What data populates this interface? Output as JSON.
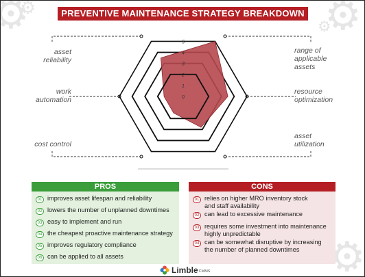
{
  "title": "PREVENTIVE MAINTENANCE STRATEGY BREAKDOWN",
  "chart_data": {
    "type": "radar",
    "axes": [
      "range of applicable assets",
      "resource optimization",
      "asset utilization",
      "cost control",
      "work automation",
      "asset reliability"
    ],
    "axis_labels": {
      "asset_reliability": [
        "asset",
        "reliability"
      ],
      "range_of_applicable_assets": [
        "range of",
        "applicable",
        "assets"
      ],
      "work_automation": [
        "work",
        "automation"
      ],
      "resource_optimization": [
        "resource",
        "optimization"
      ],
      "cost_control": [
        "cost control"
      ],
      "asset_utilization": [
        "asset",
        "utilization"
      ]
    },
    "scale": [
      "0",
      "1",
      "2",
      "3",
      "4",
      "5"
    ],
    "rmax": 5,
    "values": [
      5,
      3.5,
      2.8,
      1.5,
      1.5,
      3.5
    ],
    "fill_color": "#b5484e",
    "grid": true
  },
  "pros": {
    "header": "PROS",
    "color": "#3b9e3b",
    "items": [
      {
        "num": "01",
        "text": [
          "improves asset lifespan and reliability"
        ]
      },
      {
        "num": "02",
        "text": [
          "lowers the number of unplanned downtimes"
        ]
      },
      {
        "num": "03",
        "text": [
          "easy to implement and run"
        ]
      },
      {
        "num": "04",
        "text": [
          "the cheapest proactive maintenance strategy"
        ]
      },
      {
        "num": "05",
        "text": [
          "improves regulatory compliance"
        ]
      },
      {
        "num": "06",
        "text": [
          "can be applied to all assets"
        ]
      }
    ]
  },
  "cons": {
    "header": "CONS",
    "color": "#b51f24",
    "items": [
      {
        "num": "01",
        "text": [
          "relies on higher MRO inventory stock",
          "and staff availability"
        ]
      },
      {
        "num": "02",
        "text": [
          "can lead to excessive maintenance"
        ]
      },
      {
        "num": "03",
        "text": [
          "requires some investment into maintenance",
          "highly unpredictable"
        ]
      },
      {
        "num": "04",
        "text": [
          "can be somewhat disruptive by increasing",
          "the number of planned downtimes"
        ]
      }
    ]
  },
  "logo": {
    "text": "Limble",
    "sub": "CMMS",
    "icon": "limble-flower-logo"
  }
}
